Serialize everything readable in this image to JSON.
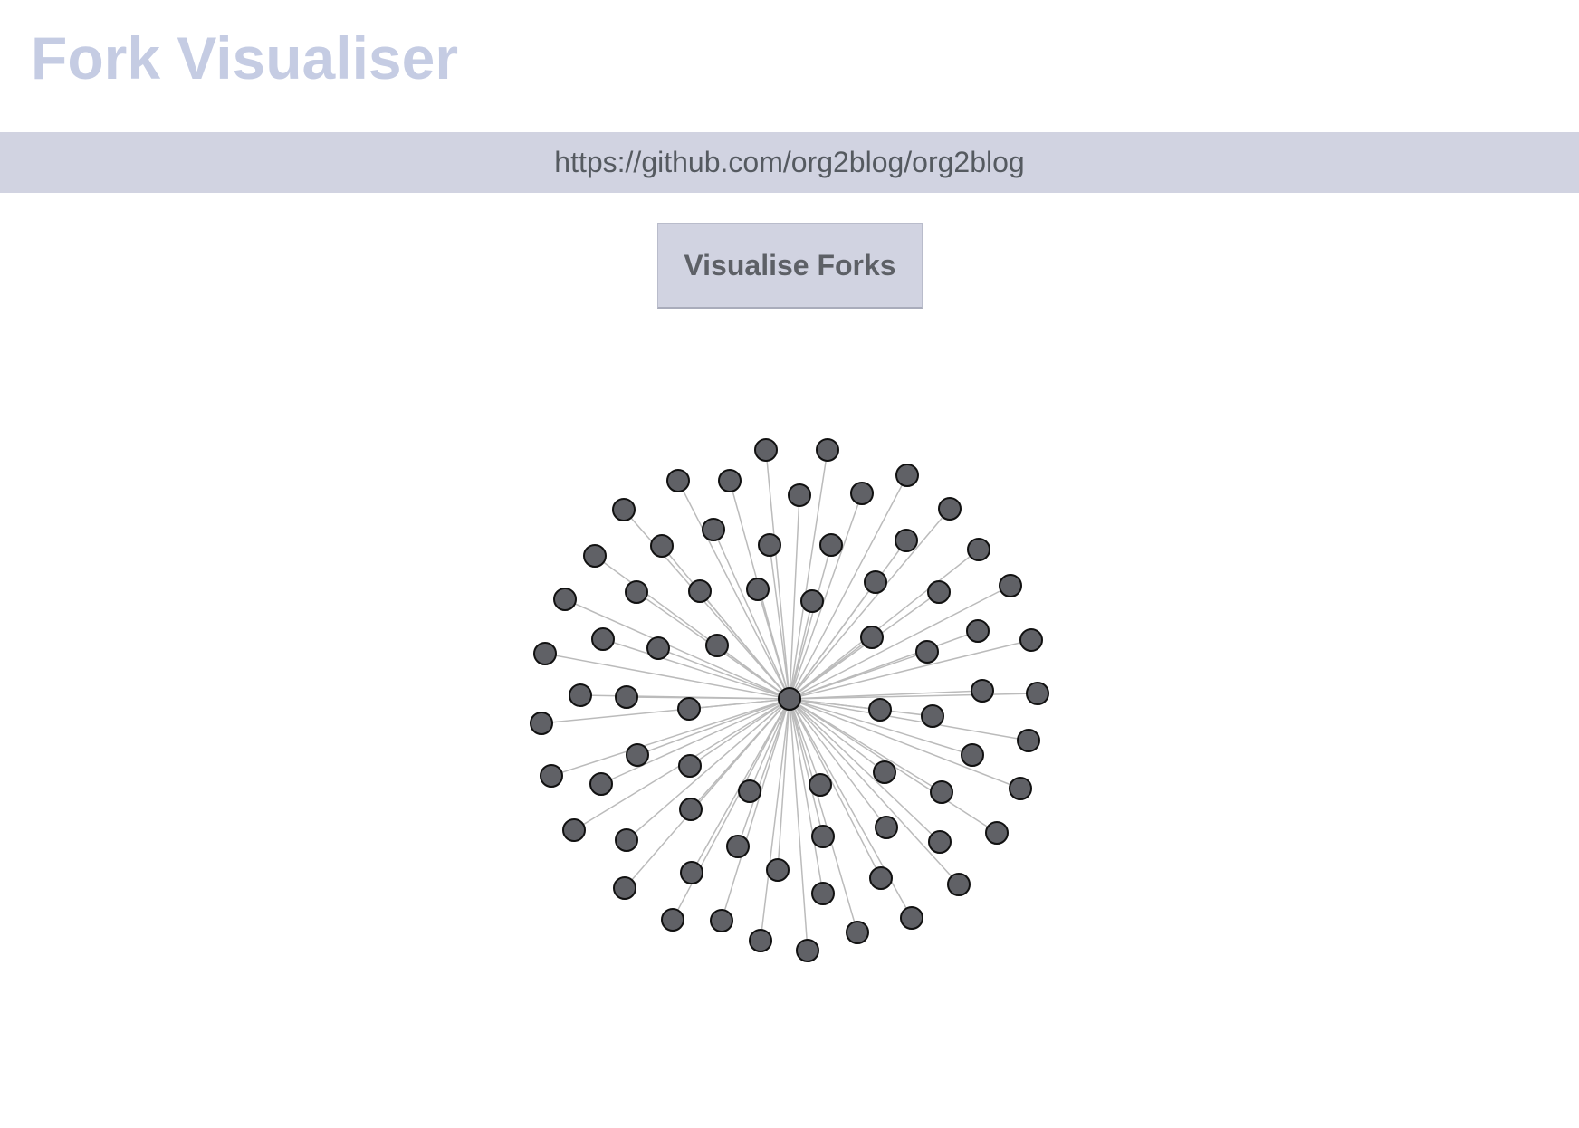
{
  "header": {
    "title": "Fork Visualiser"
  },
  "repo_input": {
    "value": "https://github.com/org2blog/org2blog"
  },
  "actions": {
    "visualise_label": "Visualise Forks"
  },
  "graph": {
    "root_node": "org2blog/org2blog",
    "fork_count": 82,
    "node_fill": "#606166",
    "node_stroke": "#111111",
    "link_color": "#bbbbbb"
  },
  "colors": {
    "title": "#c5cce3",
    "input_background": "#d1d3e1",
    "button_background": "#d1d3e1",
    "button_text": "#5d6066"
  }
}
